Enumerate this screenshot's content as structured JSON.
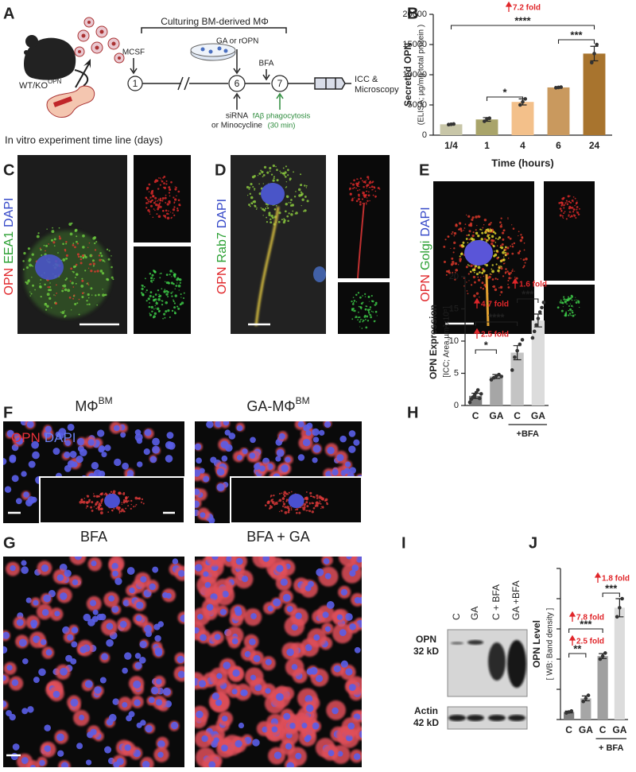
{
  "panel_letters": [
    "A",
    "B",
    "C",
    "D",
    "E",
    "F",
    "G",
    "H",
    "I",
    "J"
  ],
  "timeline": {
    "bracket_title": "Culturing BM-derived MΦ",
    "days": [
      "1",
      "6",
      "7"
    ],
    "mcsf": "MCSF",
    "ga": "GA or rOPN",
    "bfa": "BFA",
    "sirna": [
      "siRNA",
      "or Minocycline"
    ],
    "phago": [
      "fAβ phagocytosis",
      "(30 min)"
    ],
    "end": [
      "ICC &",
      "Microscopy"
    ],
    "mouse": "WT/KO",
    "mouse_sup": "OPN",
    "caption": "In vitro experiment time line (days)"
  },
  "stains": {
    "C": [
      "OPN",
      "EEA1",
      "DAPI"
    ],
    "D": [
      "OPN",
      "Rab7",
      "DAPI"
    ],
    "E": [
      "OPN",
      "Golgi",
      "DAPI"
    ],
    "F": [
      "OPN",
      "DAPI"
    ]
  },
  "panel_f": {
    "left": "MΦ",
    "left_sup": "BM",
    "right": "GA-MΦ",
    "right_sup": "BM"
  },
  "panel_g": {
    "left": "BFA",
    "right": "BFA + GA"
  },
  "blot": {
    "lanes": [
      "C",
      "GA",
      "C + BFA",
      "GA +BFA"
    ],
    "opn": [
      "OPN",
      "32 kD"
    ],
    "actin": [
      "Actin",
      "42 kD"
    ]
  },
  "chart_data": [
    {
      "type": "bar",
      "y_label": [
        "Secreted OPN",
        "(ELISA; µg/mg total protein )"
      ],
      "x_label": "Time (hours)",
      "categories": [
        "1/4",
        "1",
        "4",
        "6",
        "24"
      ],
      "values": [
        1800,
        2600,
        5500,
        7900,
        13500
      ],
      "errors": [
        100,
        300,
        500,
        100,
        1200
      ],
      "points": [
        [
          1750,
          1800,
          1850
        ],
        [
          2300,
          2700,
          2800
        ],
        [
          5000,
          5500,
          6000
        ],
        [
          7850,
          7900,
          7950
        ],
        [
          12000,
          13500,
          15000
        ]
      ],
      "colors": [
        "#c8c6a8",
        "#a9a46a",
        "#f3c08a",
        "#c9995e",
        "#a8742e"
      ],
      "ylim": [
        0,
        20000
      ],
      "yticks": [
        0,
        5000,
        10000,
        15000,
        20000
      ],
      "annotations": [
        "7.2 fold",
        "****",
        "*",
        "***"
      ]
    },
    {
      "type": "bar",
      "y_label": [
        "OPN Expression",
        "[ICC; Area,µm²x10⁵]"
      ],
      "categories": [
        "C",
        "GA",
        "C",
        "GA"
      ],
      "group_label": "+BFA",
      "values": [
        1.5,
        4.5,
        8.2,
        13.2
      ],
      "errors": [
        0.4,
        0.3,
        1.1,
        1.0
      ],
      "points": [
        [
          0.5,
          1,
          1.3,
          1.6,
          2,
          2.4,
          1.1,
          1.8
        ],
        [
          4,
          4.3,
          4.6,
          4.8,
          4.5
        ],
        [
          5.5,
          7.5,
          8.5,
          9.5,
          10.2
        ],
        [
          10.5,
          11.5,
          12.5,
          13.5,
          14.5,
          15.2,
          16
        ]
      ],
      "colors": [
        "#7f7f7f",
        "#a6a6a6",
        "#c4c4c4",
        "#dcdcdc"
      ],
      "ylim": [
        0,
        20
      ],
      "yticks": [
        0,
        5,
        10,
        15,
        20
      ],
      "annotations": [
        "4.7 fold",
        "2.5 fold",
        "****",
        "*",
        "1.6 fold",
        "***"
      ]
    },
    {
      "type": "bar",
      "y_label": [
        "OPN Level",
        "[ WB: Band density ]"
      ],
      "categories": [
        "C",
        "GA",
        "C",
        "GA"
      ],
      "group_label": "+ BFA",
      "values": [
        0.25,
        0.7,
        2.1,
        3.7
      ],
      "errors": [
        0.03,
        0.08,
        0.08,
        0.3
      ],
      "points": [
        [
          0.22,
          0.25,
          0.28
        ],
        [
          0.6,
          0.7,
          0.8
        ],
        [
          2.0,
          2.1,
          2.2
        ],
        [
          3.4,
          3.7,
          4.0
        ]
      ],
      "colors": [
        "#7f7f7f",
        "#a6a6a6",
        "#a0a0a0",
        "#dcdcdc"
      ],
      "ylim": [
        0,
        5
      ],
      "yticks": [
        0,
        1,
        2,
        3,
        4,
        5
      ],
      "tick_labels": false,
      "annotations": [
        "1.8 fold",
        "***",
        "7.8 fold",
        "2.5 fold",
        "***",
        "**"
      ]
    }
  ]
}
